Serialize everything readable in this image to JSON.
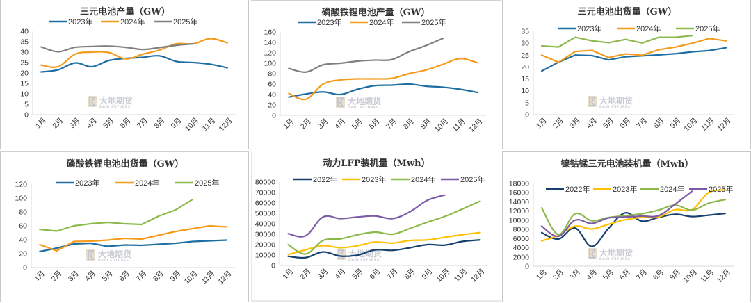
{
  "watermark": {
    "brand_cn": "大地期货",
    "brand_en": "DADI FUTURES"
  },
  "colors": {
    "blue": "#1f6ea3",
    "navy": "#17406e",
    "orange": "#f59b1a",
    "gray": "#7f7f7f",
    "green": "#8db84a",
    "yellow": "#ffc000",
    "purple": "#7d5aa6"
  },
  "chart_data": [
    {
      "type": "line",
      "title": "三元电池产量（GW）",
      "categories": [
        "1月",
        "2月",
        "3月",
        "4月",
        "5月",
        "6月",
        "7月",
        "8月",
        "9月",
        "10月",
        "11月",
        "12月"
      ],
      "ylim": [
        0,
        40
      ],
      "yticks": [
        0,
        5,
        10,
        15,
        20,
        25,
        30,
        35,
        40
      ],
      "legend": "top",
      "grid": false,
      "series": [
        {
          "name": "2023年",
          "color": "#1f6ea3",
          "values": [
            20.5,
            21.5,
            24.8,
            23,
            26,
            27,
            27.5,
            28.2,
            25.5,
            25,
            24.2,
            22.5
          ]
        },
        {
          "name": "2024年",
          "color": "#f59b1a",
          "values": [
            23.8,
            23,
            29,
            30,
            29.8,
            26.8,
            29,
            31,
            34,
            34,
            36.5,
            34.5
          ]
        },
        {
          "name": "2025年",
          "color": "#7f7f7f",
          "values": [
            32.5,
            30.2,
            32.3,
            32.7,
            32.9,
            32.3,
            31.3,
            32.2,
            33.3,
            34
          ]
        }
      ]
    },
    {
      "type": "line",
      "title": "磷酸铁锂电池产量（GW）",
      "categories": [
        "1月",
        "2月",
        "3月",
        "4月",
        "5月",
        "6月",
        "7月",
        "8月",
        "9月",
        "10月",
        "11月",
        "12月"
      ],
      "ylim": [
        0,
        160
      ],
      "yticks": [
        0,
        20,
        40,
        60,
        80,
        100,
        120,
        140,
        160
      ],
      "legend": "top",
      "grid": false,
      "series": [
        {
          "name": "2023年",
          "color": "#1f6ea3",
          "values": [
            35,
            41,
            45,
            40,
            50,
            57,
            58,
            60,
            56,
            54,
            50,
            44
          ]
        },
        {
          "name": "2024年",
          "color": "#f59b1a",
          "values": [
            42,
            31,
            60,
            68,
            70,
            70,
            71,
            80,
            87,
            98,
            109,
            101
          ]
        },
        {
          "name": "2025年",
          "color": "#7f7f7f",
          "values": [
            90,
            83,
            97,
            100,
            104,
            106,
            107,
            122,
            134,
            148
          ]
        }
      ]
    },
    {
      "type": "line",
      "title": "三元电池出货量（GW）",
      "categories": [
        "1月",
        "2月",
        "3月",
        "4月",
        "5月",
        "6月",
        "7月",
        "8月",
        "9月",
        "10月",
        "11月",
        "12月"
      ],
      "ylim": [
        0,
        35
      ],
      "yticks": [
        0,
        5,
        10,
        15,
        20,
        25,
        30,
        35
      ],
      "legend": "top",
      "grid": false,
      "series": [
        {
          "name": "2023年",
          "color": "#1f6ea3",
          "values": [
            18.3,
            22,
            25,
            24.8,
            23,
            24.3,
            24.7,
            25.1,
            25.6,
            26.4,
            26.9,
            28.1
          ]
        },
        {
          "name": "2024年",
          "color": "#f59b1a",
          "values": [
            25,
            22,
            26.5,
            27,
            24,
            25.5,
            25,
            27.3,
            28.4,
            30,
            32,
            31
          ]
        },
        {
          "name": "2025年",
          "color": "#8db84a",
          "values": [
            28.9,
            28.4,
            32.5,
            31,
            30.2,
            31.6,
            30.1,
            32.5,
            32.5,
            33.2
          ]
        }
      ]
    },
    {
      "type": "line",
      "title": "磷酸铁锂电池出货量（GW）",
      "categories": [
        "1月",
        "2月",
        "3月",
        "4月",
        "5月",
        "6月",
        "7月",
        "8月",
        "9月",
        "10月",
        "11月",
        "12月"
      ],
      "ylim": [
        0,
        120
      ],
      "yticks": [
        0,
        20,
        40,
        60,
        80,
        100,
        120
      ],
      "legend": "top",
      "grid": false,
      "series": [
        {
          "name": "2023年",
          "color": "#1f6ea3",
          "values": [
            23,
            28,
            34,
            35,
            30.5,
            32.5,
            32,
            33.5,
            35,
            37.5,
            38.5,
            39.5
          ]
        },
        {
          "name": "2024年",
          "color": "#f59b1a",
          "values": [
            33,
            24,
            37.5,
            38,
            39.5,
            42,
            41,
            46.5,
            52,
            56,
            60,
            58.5
          ]
        },
        {
          "name": "2025年",
          "color": "#8db84a",
          "values": [
            55,
            52.5,
            60,
            63,
            65,
            63,
            62,
            74,
            83,
            98
          ]
        }
      ]
    },
    {
      "type": "line",
      "title": "动力LFP装机量（Mwh）",
      "categories": [
        "1月",
        "2月",
        "3月",
        "4月",
        "5月",
        "6月",
        "7月",
        "8月",
        "9月",
        "10月",
        "11月",
        "12月"
      ],
      "ylim": [
        0,
        80000
      ],
      "yticks": [
        0,
        10000,
        20000,
        30000,
        40000,
        50000,
        60000,
        70000,
        80000
      ],
      "legend": "top",
      "grid": false,
      "series": [
        {
          "name": "2022年",
          "color": "#17406e",
          "values": [
            8800,
            7500,
            13000,
            9000,
            10000,
            15000,
            14500,
            17000,
            20000,
            19500,
            23000,
            24500
          ]
        },
        {
          "name": "2023年",
          "color": "#ffc000",
          "values": [
            10500,
            15000,
            19000,
            17000,
            19000,
            22500,
            21500,
            24000,
            24500,
            27000,
            29500,
            31500
          ]
        },
        {
          "name": "2024年",
          "color": "#8db84a",
          "values": [
            20000,
            11000,
            24000,
            25500,
            29500,
            32000,
            30000,
            35500,
            41500,
            47000,
            54000,
            61500
          ]
        },
        {
          "name": "2025年",
          "color": "#7d5aa6",
          "values": [
            30500,
            28500,
            46500,
            45000,
            46500,
            47500,
            45000,
            51500,
            62500,
            67500
          ]
        }
      ]
    },
    {
      "type": "line",
      "title": "镍钴锰三元电池装机量（Mwh）",
      "categories": [
        "1月",
        "2月",
        "3月",
        "4月",
        "5月",
        "6月",
        "7月",
        "8月",
        "9月",
        "10月",
        "11月",
        "12月"
      ],
      "ylim": [
        0,
        18000
      ],
      "yticks": [
        0,
        2000,
        4000,
        6000,
        8000,
        10000,
        12000,
        14000,
        16000,
        18000
      ],
      "legend": "top",
      "grid": false,
      "series": [
        {
          "name": "2022年",
          "color": "#17406e",
          "values": [
            7300,
            5900,
            8300,
            4300,
            8200,
            11600,
            9800,
            10600,
            11300,
            10800,
            11100,
            11500
          ]
        },
        {
          "name": "2023年",
          "color": "#ffc000",
          "values": [
            5500,
            6700,
            8700,
            8100,
            9100,
            10100,
            10600,
            10700,
            12300,
            12300,
            16000,
            16600
          ]
        },
        {
          "name": "2024年",
          "color": "#8db84a",
          "values": [
            12700,
            6900,
            11400,
            9900,
            10600,
            11000,
            11400,
            12200,
            13300,
            12200,
            13700,
            14500
          ]
        },
        {
          "name": "2025年",
          "color": "#7d5aa6",
          "values": [
            8700,
            6500,
            10000,
            9300,
            10500,
            10700,
            10900,
            11000,
            13500,
            16300
          ]
        }
      ]
    }
  ]
}
